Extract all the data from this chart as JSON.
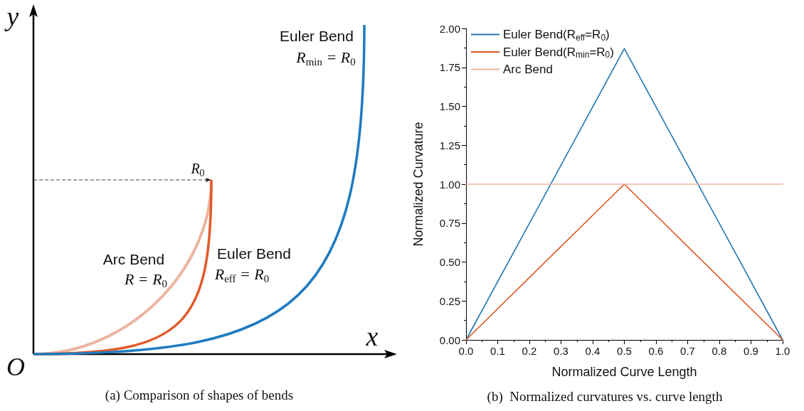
{
  "chart_data": [
    {
      "type": "other",
      "title": "(a)  Comparison of shapes of bends",
      "xlabel": "x",
      "ylabel": "y",
      "annotations": [
        "Euler Bend",
        "R$_{min}$ = R$_{0}$",
        "Euler Bend",
        "R$_{eff}$ = R$_{0}$",
        "Arc Bend",
        "R = R$_{0}$",
        "R$_{0}$",
        "O"
      ]
    },
    {
      "type": "line",
      "title": "(b)  Normalized curvatures vs. curve length",
      "xlabel": "Normalized Curve Length",
      "ylabel": "Normalized Curvature",
      "marker": "none",
      "legend": "top left",
      "grid": false,
      "xlim": [
        0,
        1
      ],
      "xticks": [
        {
          "value": 0,
          "label": "0.0"
        },
        0.1,
        0.2,
        0.3,
        0.4,
        0.5,
        0.6,
        0.7,
        0.8,
        0.9,
        {
          "value": 1,
          "label": "1.0"
        }
      ],
      "ylim": [
        0,
        2
      ],
      "yticks": [
        {
          "value": 0,
          "label": "0.00"
        },
        0.25,
        {
          "value": 0.5,
          "label": "0.50"
        },
        0.75,
        {
          "value": 1,
          "label": "1.00"
        },
        1.25,
        {
          "value": 1.5,
          "label": "1.50"
        },
        1.75,
        {
          "value": 2,
          "label": "2.00"
        }
      ],
      "x": [
        0,
        0.5,
        1
      ],
      "series": [
        {
          "name": "Euler Bend(R$_{eff}$=R$_{0}$)",
          "color": "#1f77b4",
          "values": [
            0,
            1.87,
            0
          ]
        },
        {
          "name": "Euler Bend(R$_{min}$=R$_{0}$)",
          "color": "#e0531f",
          "values": [
            0,
            1,
            0
          ]
        },
        {
          "name": "Arc Bend",
          "color": "#f2b3a0",
          "x": [
            0,
            1
          ],
          "values": [
            1,
            1
          ]
        }
      ]
    }
  ]
}
